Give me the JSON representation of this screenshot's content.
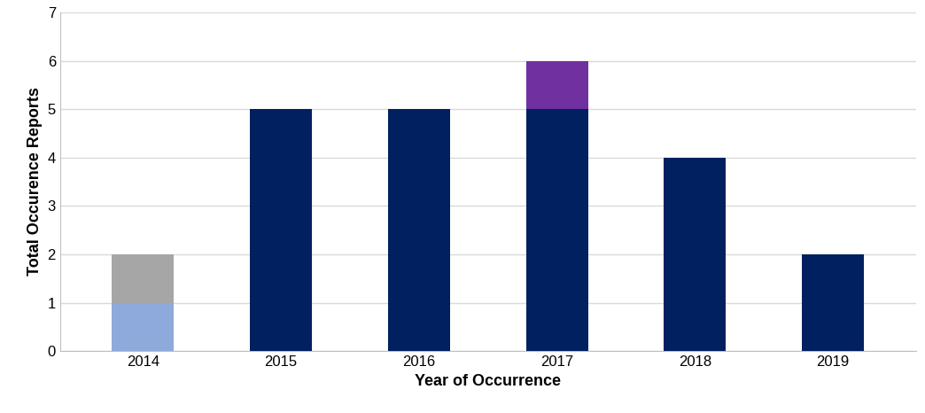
{
  "chart_data": {
    "type": "bar",
    "stacked": true,
    "grid": true,
    "x_label": "Year of Occurrence",
    "y_label": "Total Occurence Reports",
    "categories": [
      "2014",
      "2015",
      "2016",
      "2017",
      "2018",
      "2019"
    ],
    "series": [
      {
        "color": "#8EA9DB",
        "values": [
          1,
          0,
          0,
          0,
          0,
          0
        ]
      },
      {
        "color": "#A6A6A6",
        "values": [
          1,
          0,
          0,
          0,
          0,
          0
        ]
      },
      {
        "color": "#002060",
        "values": [
          0,
          5,
          5,
          5,
          4,
          2
        ]
      },
      {
        "color": "#7030A0",
        "values": [
          0,
          0,
          0,
          1,
          0,
          0
        ]
      }
    ],
    "ylim": [
      0,
      7
    ],
    "yticks": [
      0,
      1,
      2,
      3,
      4,
      5,
      6,
      7
    ]
  }
}
